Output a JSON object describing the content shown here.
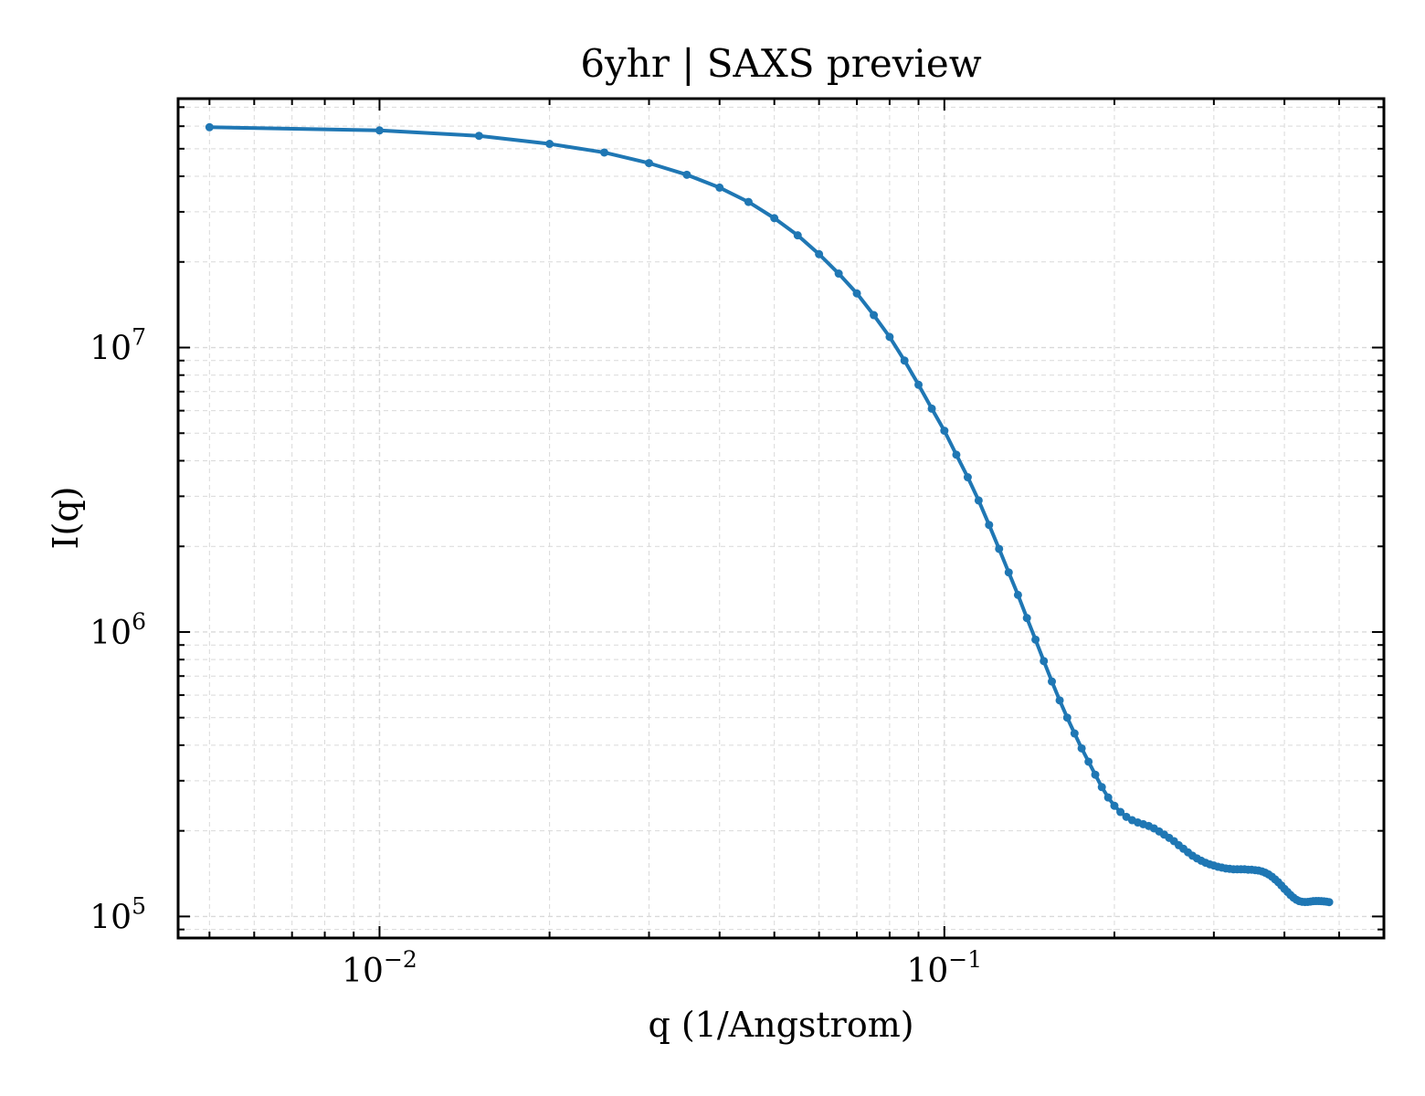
{
  "chart_data": {
    "type": "line",
    "title": "6yhr | SAXS preview",
    "xlabel": "q (1/Angstrom)",
    "ylabel": "I(q)",
    "x_scale": "log",
    "y_scale": "log",
    "xlim": [
      0.0044,
      0.6
    ],
    "ylim": [
      84000,
      75000000
    ],
    "grid": true,
    "x_ticks": [
      {
        "value": 0.01,
        "base": "10",
        "exp": "−2"
      },
      {
        "value": 0.1,
        "base": "10",
        "exp": "−1"
      }
    ],
    "y_ticks": [
      {
        "value": 100000,
        "base": "10",
        "exp": "5"
      },
      {
        "value": 1000000,
        "base": "10",
        "exp": "6"
      },
      {
        "value": 10000000,
        "base": "10",
        "exp": "7"
      }
    ],
    "colors": {
      "series": "#1f77b4",
      "grid": "#d9d9d9",
      "axes": "#000000"
    },
    "series": [
      {
        "points": [
          [
            0.005,
            59500000
          ],
          [
            0.01,
            58000000
          ],
          [
            0.015,
            55500000
          ],
          [
            0.02,
            52000000
          ],
          [
            0.025,
            48500000
          ],
          [
            0.03,
            44500000
          ],
          [
            0.035,
            40500000
          ],
          [
            0.04,
            36500000
          ],
          [
            0.045,
            32500000
          ],
          [
            0.05,
            28500000
          ],
          [
            0.055,
            24800000
          ],
          [
            0.06,
            21300000
          ],
          [
            0.065,
            18200000
          ],
          [
            0.07,
            15500000
          ],
          [
            0.075,
            13000000
          ],
          [
            0.08,
            10900000
          ],
          [
            0.085,
            9000000
          ],
          [
            0.09,
            7400000
          ],
          [
            0.095,
            6100000
          ],
          [
            0.1,
            5100000
          ],
          [
            0.105,
            4200000
          ],
          [
            0.11,
            3500000
          ],
          [
            0.115,
            2900000
          ],
          [
            0.12,
            2380000
          ],
          [
            0.125,
            1960000
          ],
          [
            0.13,
            1620000
          ],
          [
            0.135,
            1350000
          ],
          [
            0.14,
            1120000
          ],
          [
            0.145,
            940000
          ],
          [
            0.15,
            790000
          ],
          [
            0.155,
            670000
          ],
          [
            0.16,
            575000
          ],
          [
            0.165,
            500000
          ],
          [
            0.17,
            440000
          ],
          [
            0.175,
            390000
          ],
          [
            0.18,
            350000
          ],
          [
            0.185,
            315000
          ],
          [
            0.19,
            285000
          ],
          [
            0.195,
            262000
          ],
          [
            0.2,
            245000
          ],
          [
            0.205,
            233000
          ],
          [
            0.21,
            224000
          ],
          [
            0.215,
            218000
          ],
          [
            0.22,
            214000
          ],
          [
            0.225,
            211000
          ],
          [
            0.23,
            208000
          ],
          [
            0.235,
            204000
          ],
          [
            0.24,
            199000
          ],
          [
            0.245,
            194000
          ],
          [
            0.25,
            189000
          ],
          [
            0.255,
            184000
          ],
          [
            0.26,
            178000
          ],
          [
            0.265,
            173000
          ],
          [
            0.27,
            168000
          ],
          [
            0.275,
            163500
          ],
          [
            0.28,
            160000
          ],
          [
            0.285,
            157000
          ],
          [
            0.29,
            154500
          ],
          [
            0.295,
            152500
          ],
          [
            0.3,
            151000
          ],
          [
            0.305,
            149500
          ],
          [
            0.31,
            148500
          ],
          [
            0.315,
            147500
          ],
          [
            0.32,
            147000
          ],
          [
            0.325,
            146500
          ],
          [
            0.33,
            146500
          ],
          [
            0.335,
            146500
          ],
          [
            0.34,
            146500
          ],
          [
            0.345,
            146000
          ],
          [
            0.35,
            146000
          ],
          [
            0.355,
            145500
          ],
          [
            0.36,
            145000
          ],
          [
            0.365,
            144000
          ],
          [
            0.37,
            142500
          ],
          [
            0.375,
            140500
          ],
          [
            0.38,
            138000
          ],
          [
            0.385,
            135000
          ],
          [
            0.39,
            132000
          ],
          [
            0.395,
            128500
          ],
          [
            0.4,
            125000
          ],
          [
            0.405,
            122000
          ],
          [
            0.41,
            119000
          ],
          [
            0.415,
            116500
          ],
          [
            0.42,
            114500
          ],
          [
            0.425,
            113200
          ],
          [
            0.43,
            112600
          ],
          [
            0.435,
            112400
          ],
          [
            0.44,
            112500
          ],
          [
            0.445,
            112800
          ],
          [
            0.45,
            113200
          ],
          [
            0.455,
            113300
          ],
          [
            0.46,
            113300
          ],
          [
            0.465,
            113200
          ],
          [
            0.47,
            113000
          ],
          [
            0.475,
            112700
          ],
          [
            0.48,
            112300
          ]
        ]
      }
    ]
  }
}
